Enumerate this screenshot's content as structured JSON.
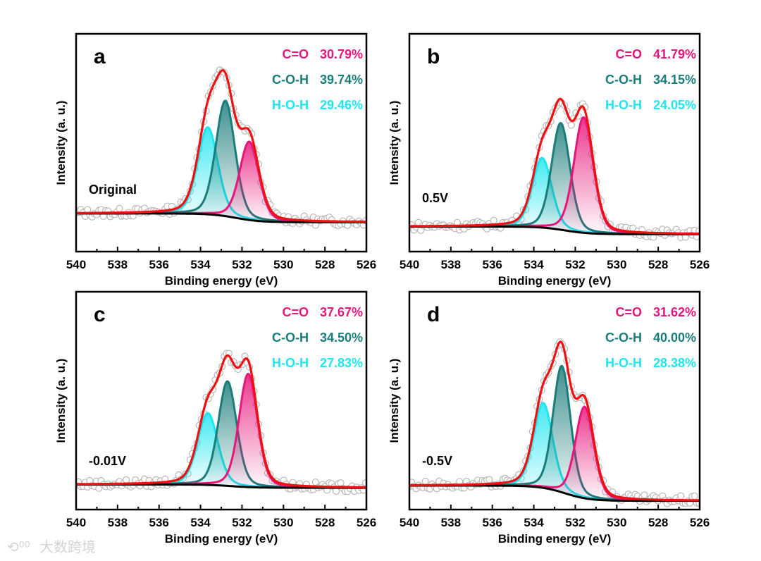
{
  "chart_data": [
    {
      "type": "line",
      "panel_letter": "a",
      "sample_label": "Original",
      "xlabel": "Binding energy (eV)",
      "ylabel": "Intensity (a. u.)",
      "xlim": [
        540,
        526
      ],
      "x_ticks": [
        "540",
        "538",
        "536",
        "534",
        "532",
        "530",
        "528",
        "526"
      ],
      "baseline": {
        "left": 0.175,
        "right": 0.135,
        "step_center_eV": 532.3
      },
      "components": [
        {
          "name": "C=O",
          "percent": "30.79%",
          "center_eV": 531.65,
          "height": 0.36,
          "fwhm_eV": 1.1,
          "color": "#e8157a"
        },
        {
          "name": "C-O-H",
          "percent": "39.74%",
          "center_eV": 532.8,
          "height": 0.53,
          "fwhm_eV": 1.1,
          "color": "#1b7d7a"
        },
        {
          "name": "H-O-H",
          "percent": "29.46%",
          "center_eV": 533.65,
          "height": 0.4,
          "fwhm_eV": 1.15,
          "color": "#1ee6f0"
        }
      ]
    },
    {
      "type": "line",
      "panel_letter": "b",
      "sample_label": "0.5V",
      "xlabel": "Binding energy (eV)",
      "ylabel": "Intensity (a. u.)",
      "xlim": [
        540,
        526
      ],
      "x_ticks": [
        "540",
        "538",
        "536",
        "534",
        "532",
        "530",
        "528",
        "526"
      ],
      "baseline": {
        "left": 0.115,
        "right": 0.08,
        "step_center_eV": 532.5
      },
      "components": [
        {
          "name": "C=O",
          "percent": "41.79%",
          "center_eV": 531.6,
          "height": 0.53,
          "fwhm_eV": 1.1,
          "color": "#e8157a"
        },
        {
          "name": "C-O-H",
          "percent": "34.15%",
          "center_eV": 532.7,
          "height": 0.49,
          "fwhm_eV": 1.05,
          "color": "#1b7d7a"
        },
        {
          "name": "H-O-H",
          "percent": "24.05%",
          "center_eV": 533.6,
          "height": 0.32,
          "fwhm_eV": 1.1,
          "color": "#1ee6f0"
        }
      ]
    },
    {
      "type": "line",
      "panel_letter": "c",
      "sample_label": "-0.01V",
      "xlabel": "Binding energy (eV)",
      "ylabel": "Intensity (a. u.)",
      "xlim": [
        540,
        526
      ],
      "x_ticks": [
        "540",
        "538",
        "536",
        "534",
        "532",
        "530",
        "528",
        "526"
      ],
      "baseline": {
        "left": 0.115,
        "right": 0.1,
        "step_center_eV": 532.5
      },
      "components": [
        {
          "name": "C=O",
          "percent": "37.67%",
          "center_eV": 531.7,
          "height": 0.52,
          "fwhm_eV": 1.05,
          "color": "#e8157a"
        },
        {
          "name": "C-O-H",
          "percent": "34.50%",
          "center_eV": 532.7,
          "height": 0.48,
          "fwhm_eV": 1.05,
          "color": "#1b7d7a"
        },
        {
          "name": "H-O-H",
          "percent": "27.83%",
          "center_eV": 533.65,
          "height": 0.33,
          "fwhm_eV": 1.15,
          "color": "#1ee6f0"
        }
      ]
    },
    {
      "type": "line",
      "panel_letter": "d",
      "sample_label": "-0.5V",
      "xlabel": "Binding energy (eV)",
      "ylabel": "Intensity (a. u.)",
      "xlim": [
        540,
        526
      ],
      "x_ticks": [
        "540",
        "538",
        "536",
        "534",
        "532",
        "530",
        "528",
        "526"
      ],
      "baseline": {
        "left": 0.11,
        "right": 0.04,
        "step_center_eV": 532.5
      },
      "components": [
        {
          "name": "C=O",
          "percent": "31.62%",
          "center_eV": 531.55,
          "height": 0.42,
          "fwhm_eV": 1.05,
          "color": "#e8157a"
        },
        {
          "name": "C-O-H",
          "percent": "40.00%",
          "center_eV": 532.65,
          "height": 0.58,
          "fwhm_eV": 1.0,
          "color": "#1b7d7a"
        },
        {
          "name": "H-O-H",
          "percent": "28.38%",
          "center_eV": 533.55,
          "height": 0.39,
          "fwhm_eV": 1.1,
          "color": "#1ee6f0"
        }
      ]
    }
  ],
  "colors": {
    "envelope": "#ee1111",
    "background_line": "#000000",
    "raw_points": "#b8b8b8"
  },
  "watermark": "大数跨境"
}
